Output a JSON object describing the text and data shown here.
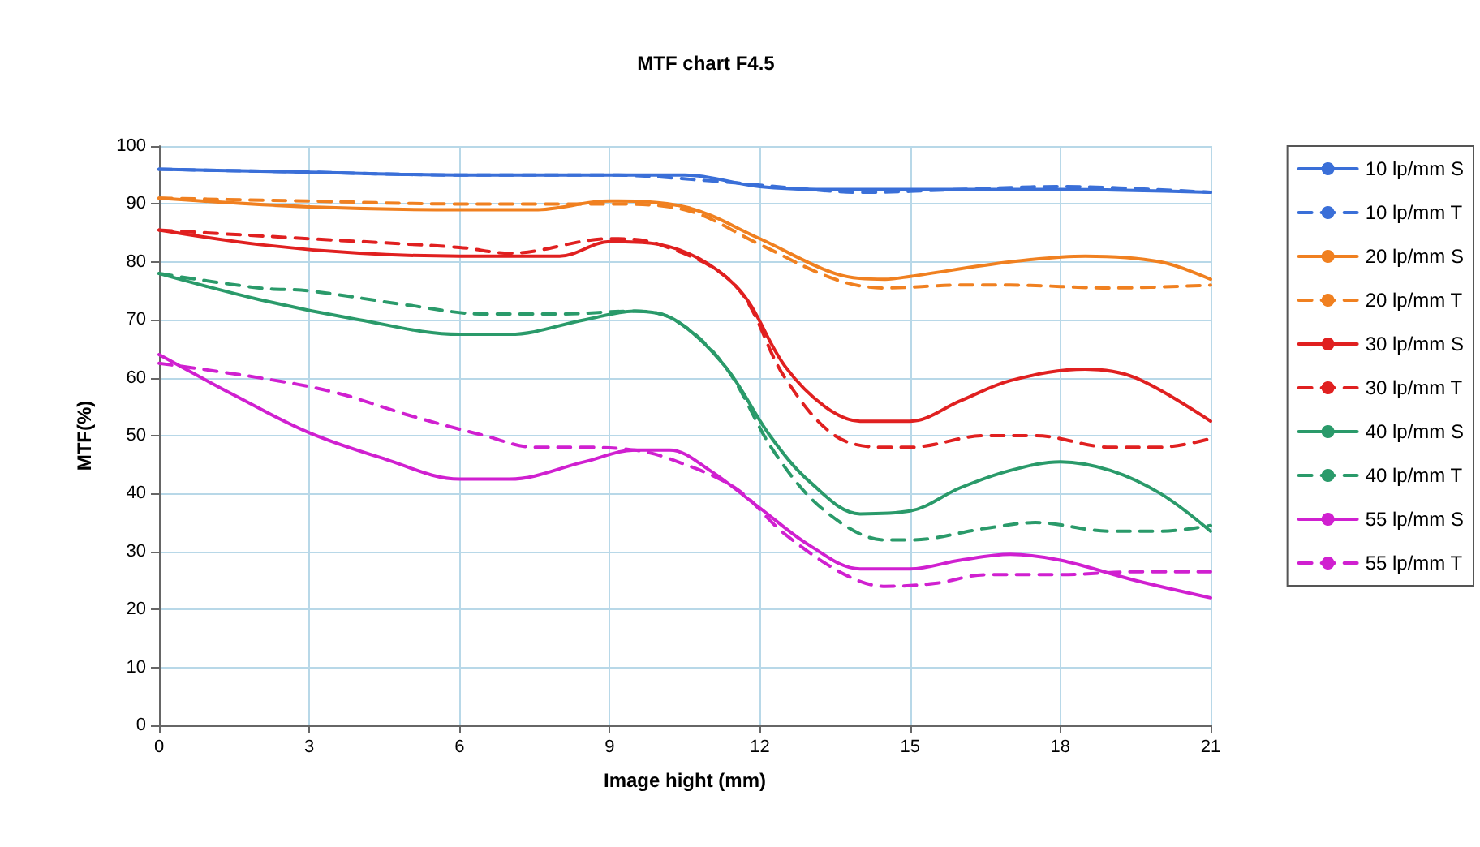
{
  "chart_data": {
    "type": "line",
    "title": "MTF chart F4.5",
    "xlabel": "Image hight (mm)",
    "ylabel": "MTF(%)",
    "xlim": [
      0,
      21
    ],
    "xticks": [
      0,
      3,
      6,
      9,
      12,
      15,
      18,
      21
    ],
    "ylim": [
      0,
      100
    ],
    "yticks": [
      0,
      10,
      20,
      30,
      40,
      50,
      60,
      70,
      80,
      90,
      100
    ],
    "grid": true,
    "legend": "right",
    "marker": "none",
    "series": [
      {
        "name": "10 lp/mm S",
        "color": "#3a6fd8",
        "line_style": "solid",
        "x": [
          0,
          3,
          6,
          9,
          10.5,
          12,
          13.5,
          15,
          18,
          21
        ],
        "values": [
          96,
          95.5,
          95,
          95,
          95,
          93,
          92.5,
          92.5,
          92.5,
          92
        ]
      },
      {
        "name": "10 lp/mm T",
        "color": "#3a6fd8",
        "line_style": "dashed",
        "x": [
          0,
          3,
          6,
          9,
          11,
          13,
          14,
          16,
          18,
          21
        ],
        "values": [
          96,
          95.5,
          95,
          95,
          94,
          92.5,
          92,
          92.5,
          93,
          92
        ]
      },
      {
        "name": "20 lp/mm S",
        "color": "#f08020",
        "line_style": "solid",
        "x": [
          0,
          3,
          6,
          7.5,
          9,
          10.5,
          12,
          13.5,
          14.5,
          15,
          17,
          18.5,
          20,
          21
        ],
        "values": [
          91,
          89.5,
          89,
          89,
          90.5,
          89.5,
          84,
          78,
          77,
          77.5,
          80,
          81,
          80,
          77
        ]
      },
      {
        "name": "20 lp/mm T",
        "color": "#f08020",
        "line_style": "dashed",
        "x": [
          0,
          3,
          6,
          7.5,
          9,
          10.5,
          12,
          13.5,
          14.5,
          16,
          17,
          19,
          21
        ],
        "values": [
          91,
          90.5,
          90,
          90,
          90,
          89,
          83,
          77,
          75.5,
          76,
          76,
          75.5,
          76
        ]
      },
      {
        "name": "30 lp/mm S",
        "color": "#e02020",
        "line_style": "solid",
        "x": [
          0,
          2,
          4,
          6,
          8,
          9,
          10,
          11.5,
          12.5,
          13.3,
          14,
          15,
          16,
          17,
          18.5,
          19.5,
          21
        ],
        "values": [
          85.5,
          83,
          81.5,
          81,
          81,
          83.5,
          83,
          76,
          62,
          55,
          52.5,
          52.5,
          56,
          59.5,
          61.5,
          60,
          52.5
        ]
      },
      {
        "name": "30 lp/mm T",
        "color": "#e02020",
        "line_style": "dashed",
        "x": [
          0,
          2,
          3,
          6,
          7,
          9,
          10,
          11.5,
          12.5,
          13.5,
          14.5,
          15,
          16.5,
          17.5,
          19,
          20,
          21
        ],
        "values": [
          85.5,
          84.5,
          84,
          82.5,
          81.5,
          84,
          83,
          76,
          60,
          50,
          48,
          48,
          50,
          50,
          48,
          48,
          49.5
        ]
      },
      {
        "name": "40 lp/mm S",
        "color": "#2a9a6a",
        "line_style": "solid",
        "x": [
          0,
          2,
          4,
          6,
          7,
          8.5,
          9.5,
          10.3,
          11.3,
          12.2,
          13,
          14,
          15,
          16,
          17,
          18,
          19,
          20,
          21
        ],
        "values": [
          78,
          73.5,
          70,
          67.5,
          67.5,
          70,
          71.5,
          70,
          62,
          50,
          42,
          36.5,
          37,
          41,
          44,
          45.5,
          44,
          40,
          33.5
        ]
      },
      {
        "name": "40 lp/mm T",
        "color": "#2a9a6a",
        "line_style": "dashed",
        "x": [
          0,
          2,
          3,
          5,
          6.5,
          8,
          9.5,
          10.3,
          11.3,
          12.3,
          13.3,
          14.5,
          15,
          16.5,
          17.5,
          19,
          20,
          21
        ],
        "values": [
          78,
          75.5,
          75,
          72.5,
          71,
          71,
          71.5,
          70,
          62,
          47,
          37,
          32,
          32,
          34,
          35,
          33.5,
          33.5,
          34.5
        ]
      },
      {
        "name": "55 lp/mm S",
        "color": "#d020d0",
        "line_style": "solid",
        "x": [
          0,
          1.5,
          3,
          4.5,
          6,
          7,
          8.5,
          9.5,
          10.2,
          11,
          12,
          13,
          14,
          15,
          16,
          17,
          18,
          19.5,
          21
        ],
        "values": [
          64,
          57,
          50.5,
          46,
          42.5,
          42.5,
          45.5,
          47.5,
          47.5,
          44,
          37.5,
          31,
          27,
          27,
          28.5,
          29.5,
          28.5,
          25,
          22
        ]
      },
      {
        "name": "55 lp/mm T",
        "color": "#d020d0",
        "line_style": "dashed",
        "x": [
          0,
          2,
          3.5,
          5,
          6.5,
          7.5,
          8.5,
          9.5,
          10.2,
          11.5,
          12.5,
          13.7,
          14.5,
          15.5,
          16.5,
          18,
          19.5,
          21
        ],
        "values": [
          62.5,
          60,
          57.5,
          53.5,
          50,
          48,
          48,
          47.5,
          46,
          41,
          33,
          26,
          24,
          24.5,
          26,
          26,
          26.5,
          26.5
        ]
      }
    ]
  }
}
